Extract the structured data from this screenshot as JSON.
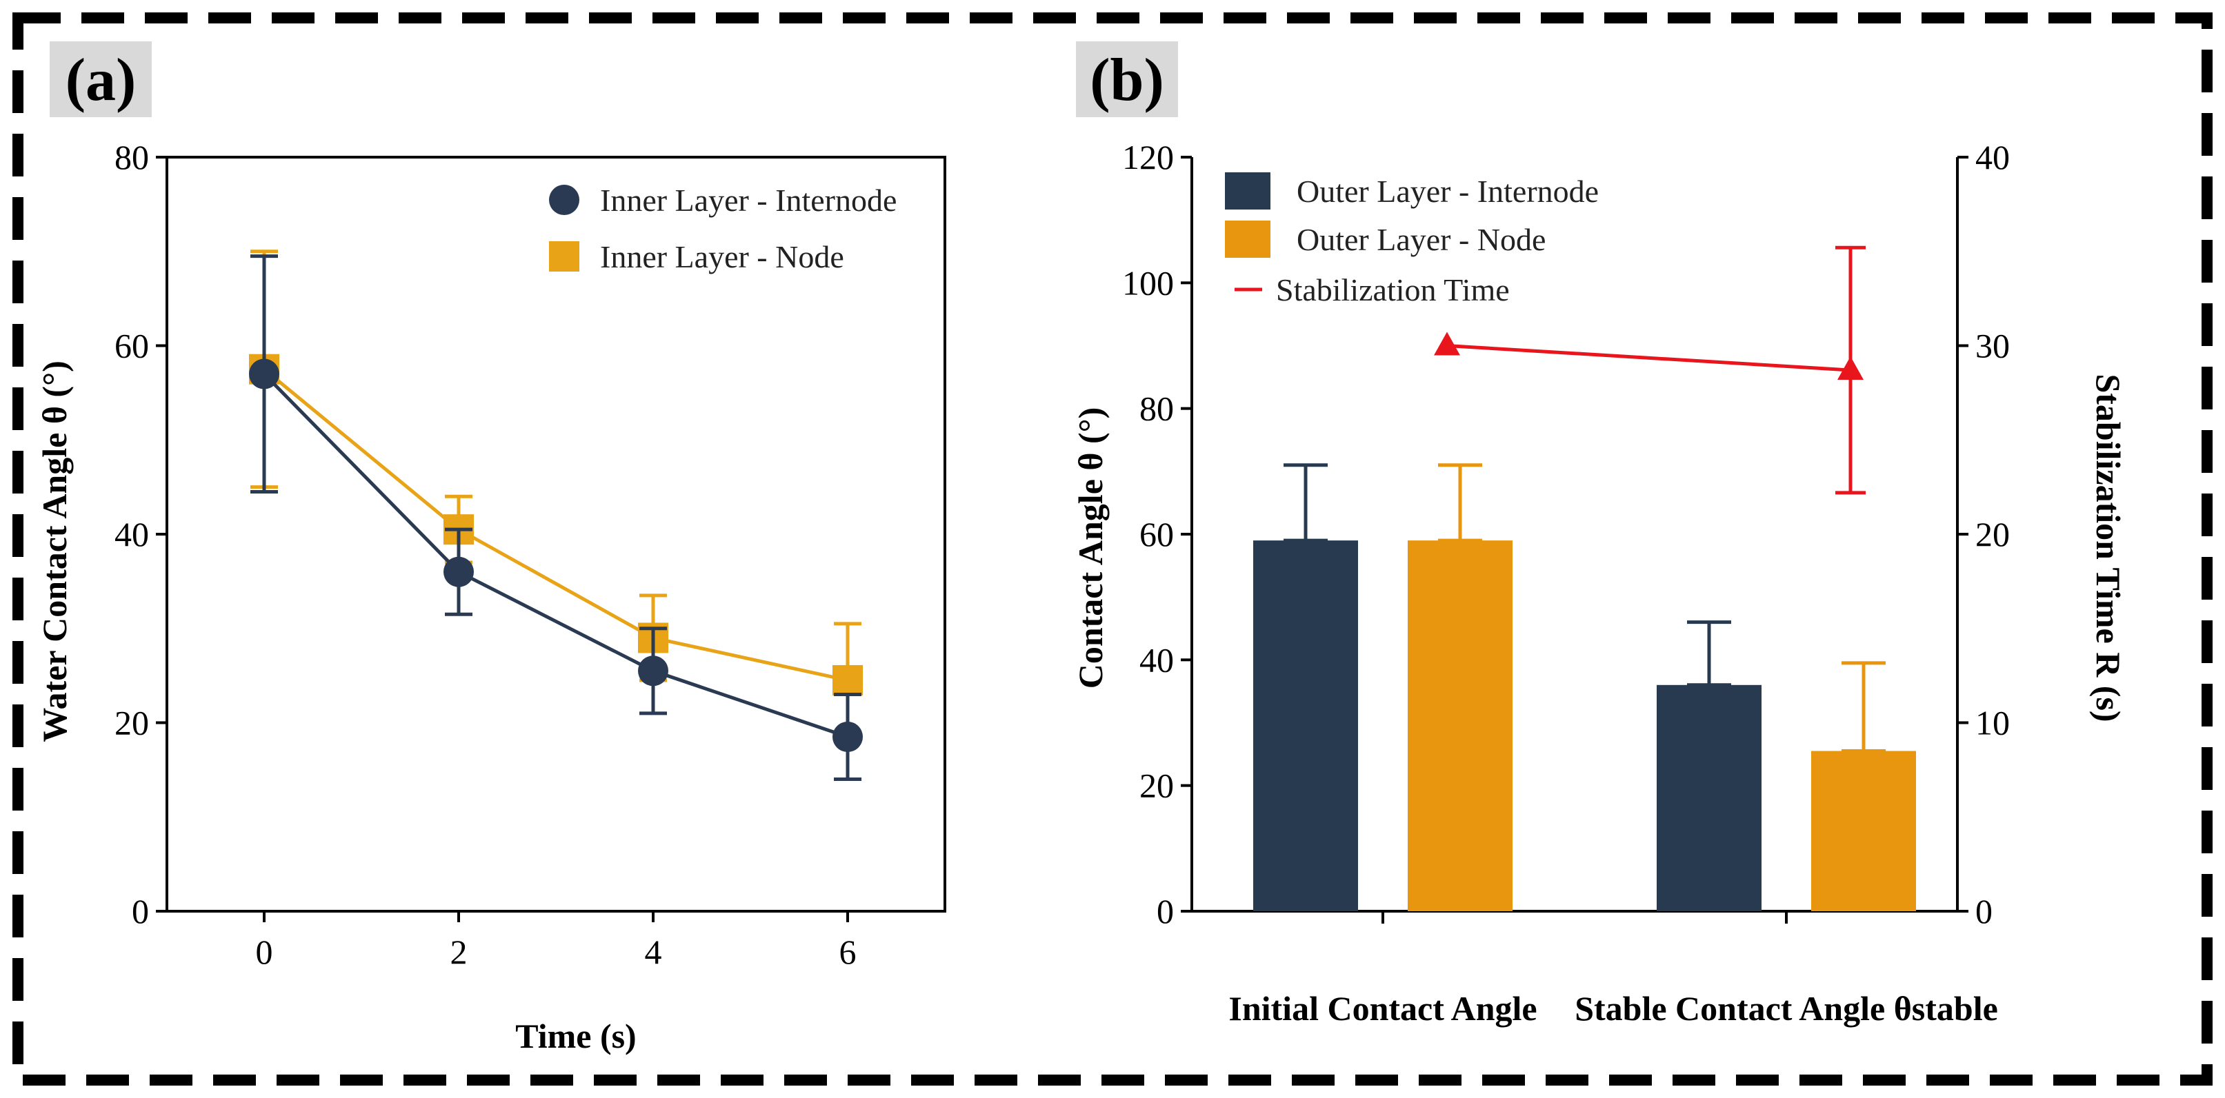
{
  "colors": {
    "navy": "#2a3a52",
    "gold": "#e8a317",
    "bar_navy": "#283a50",
    "bar_orange": "#e8960f",
    "red": "#e8151c",
    "label_bg": "#d9d9d9"
  },
  "chart_data": [
    {
      "id": "a",
      "panel_label": "(a)",
      "type": "line",
      "xlabel": "Time (s)",
      "ylabel": "Water Contact Angle θ (°)",
      "x": [
        0,
        2,
        4,
        6
      ],
      "xticks": [
        "0",
        "2",
        "4",
        "6"
      ],
      "xlim": [
        -1,
        7
      ],
      "ylim": [
        0,
        80
      ],
      "yticks": [
        "0",
        "20",
        "40",
        "60",
        "80"
      ],
      "legend_position": "top-right",
      "series": [
        {
          "name": "Inner Layer - Internode",
          "marker": "circle",
          "color": "#2a3a52",
          "values": [
            57,
            36,
            25.5,
            18.5
          ],
          "error": [
            12.5,
            4.5,
            4.5,
            4.5
          ]
        },
        {
          "name": "Inner Layer - Node",
          "marker": "square",
          "color": "#e8a317",
          "values": [
            57.5,
            40.5,
            29,
            24.5
          ],
          "error": [
            12.5,
            3.5,
            4.5,
            6
          ]
        }
      ]
    },
    {
      "id": "b",
      "panel_label": "(b)",
      "type": "bar",
      "categories": [
        "Initial Contact Angle",
        "Stable Contact Angle θstable"
      ],
      "ylabel": "Contact Angle θ (°)",
      "ylim": [
        0,
        120
      ],
      "yticks": [
        "0",
        "20",
        "40",
        "60",
        "80",
        "100",
        "120"
      ],
      "y2label": "Stabilization Time R (s)",
      "y2lim": [
        0,
        40
      ],
      "y2ticks": [
        "0",
        "10",
        "20",
        "30",
        "40"
      ],
      "legend_position": "top-left",
      "series": [
        {
          "name": "Outer Layer - Internode",
          "color": "#283a50",
          "values": [
            59,
            36
          ],
          "error": [
            12,
            10
          ]
        },
        {
          "name": "Outer Layer - Node",
          "color": "#e8960f",
          "values": [
            59,
            25.5
          ],
          "error": [
            12,
            14
          ]
        }
      ],
      "line_series": {
        "name": "Stabilization Time",
        "axis": "right",
        "marker": "triangle",
        "color": "#e8151c",
        "values": [
          30,
          28.7
        ],
        "error": [
          0,
          6.5
        ]
      }
    }
  ]
}
